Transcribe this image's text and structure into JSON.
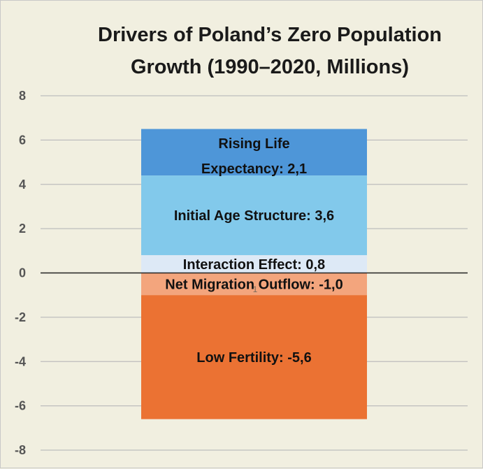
{
  "chart_data": {
    "type": "bar",
    "stacked": true,
    "title": "Drivers of Poland’s Zero Population Growth (1990–2020, Millions)",
    "ylim": [
      -8,
      8
    ],
    "yticks": [
      8,
      6,
      4,
      2,
      0,
      -2,
      -4,
      -6,
      -8
    ],
    "grid": true,
    "segments": [
      {
        "label": "Rising Life Expectancy: 2,1",
        "value": 2.1,
        "color": "#4e96d8"
      },
      {
        "label": "Initial Age Structure: 3,6",
        "value": 3.6,
        "color": "#82c9eb"
      },
      {
        "label": "Interaction Effect: 0,8",
        "value": 0.8,
        "color": "#dde9f6"
      },
      {
        "label": "Net Migration Outflow: -1,0",
        "value": -1.0,
        "color": "#f3a57d"
      },
      {
        "label": "Low Fertility: -5,6",
        "value": -5.6,
        "color": "#eb7233"
      }
    ],
    "annotations": [
      "1"
    ]
  }
}
